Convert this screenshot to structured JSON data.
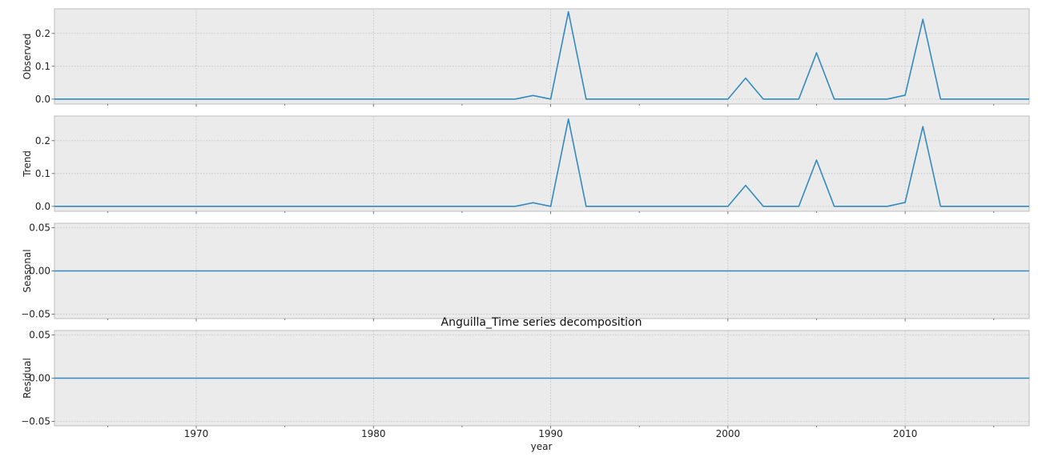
{
  "chart_data": {
    "type": "line",
    "title": "Anguilla_Time series decomposition",
    "xlabel": "year",
    "xlim": [
      1962,
      2017
    ],
    "x_ticks": [
      1970,
      1980,
      1990,
      2000,
      2010
    ],
    "x_minor_ticks": [
      1965,
      1975,
      1985,
      1995,
      2005,
      2015
    ],
    "grid": true,
    "line_color": "#348abd",
    "x": [
      1962,
      1963,
      1964,
      1965,
      1966,
      1967,
      1968,
      1969,
      1970,
      1971,
      1972,
      1973,
      1974,
      1975,
      1976,
      1977,
      1978,
      1979,
      1980,
      1981,
      1982,
      1983,
      1984,
      1985,
      1986,
      1987,
      1988,
      1989,
      1990,
      1991,
      1992,
      1993,
      1994,
      1995,
      1996,
      1997,
      1998,
      1999,
      2000,
      2001,
      2002,
      2003,
      2004,
      2005,
      2006,
      2007,
      2008,
      2009,
      2010,
      2011,
      2012,
      2013,
      2014,
      2015,
      2016,
      2017
    ],
    "panels": [
      {
        "ylabel": "Observed",
        "ylim": [
          -0.015,
          0.275
        ],
        "y_ticks": [
          0.0,
          0.1,
          0.2
        ],
        "y_tick_labels": [
          "0.0",
          "0.1",
          "0.2"
        ],
        "values": [
          0,
          0,
          0,
          0,
          0,
          0,
          0,
          0,
          0,
          0,
          0,
          0,
          0,
          0,
          0,
          0,
          0,
          0,
          0,
          0,
          0,
          0,
          0,
          0,
          0,
          0,
          0,
          0.011,
          0,
          0.266,
          0,
          0,
          0,
          0,
          0,
          0,
          0,
          0,
          0,
          0.064,
          0,
          0,
          0,
          0.141,
          0,
          0,
          0,
          0,
          0.012,
          0.243,
          0,
          0,
          0,
          0,
          0,
          0
        ]
      },
      {
        "ylabel": "Trend",
        "ylim": [
          -0.015,
          0.275
        ],
        "y_ticks": [
          0.0,
          0.1,
          0.2
        ],
        "y_tick_labels": [
          "0.0",
          "0.1",
          "0.2"
        ],
        "values": [
          0,
          0,
          0,
          0,
          0,
          0,
          0,
          0,
          0,
          0,
          0,
          0,
          0,
          0,
          0,
          0,
          0,
          0,
          0,
          0,
          0,
          0,
          0,
          0,
          0,
          0,
          0,
          0.011,
          0,
          0.266,
          0,
          0,
          0,
          0,
          0,
          0,
          0,
          0,
          0,
          0.064,
          0,
          0,
          0,
          0.141,
          0,
          0,
          0,
          0,
          0.012,
          0.243,
          0,
          0,
          0,
          0,
          0,
          0
        ]
      },
      {
        "ylabel": "Seasonal",
        "ylim": [
          -0.055,
          0.055
        ],
        "y_ticks": [
          -0.05,
          0.0,
          0.05
        ],
        "y_tick_labels": [
          "−0.05",
          "0.00",
          "0.05"
        ],
        "values": [
          0,
          0,
          0,
          0,
          0,
          0,
          0,
          0,
          0,
          0,
          0,
          0,
          0,
          0,
          0,
          0,
          0,
          0,
          0,
          0,
          0,
          0,
          0,
          0,
          0,
          0,
          0,
          0,
          0,
          0,
          0,
          0,
          0,
          0,
          0,
          0,
          0,
          0,
          0,
          0,
          0,
          0,
          0,
          0,
          0,
          0,
          0,
          0,
          0,
          0,
          0,
          0,
          0,
          0,
          0,
          0
        ]
      },
      {
        "ylabel": "Residual",
        "ylim": [
          -0.055,
          0.055
        ],
        "y_ticks": [
          -0.05,
          0.0,
          0.05
        ],
        "y_tick_labels": [
          "−0.05",
          "0.00",
          "0.05"
        ],
        "values": [
          0,
          0,
          0,
          0,
          0,
          0,
          0,
          0,
          0,
          0,
          0,
          0,
          0,
          0,
          0,
          0,
          0,
          0,
          0,
          0,
          0,
          0,
          0,
          0,
          0,
          0,
          0,
          0,
          0,
          0,
          0,
          0,
          0,
          0,
          0,
          0,
          0,
          0,
          0,
          0,
          0,
          0,
          0,
          0,
          0,
          0,
          0,
          0,
          0,
          0,
          0,
          0,
          0,
          0,
          0,
          0
        ]
      }
    ]
  }
}
